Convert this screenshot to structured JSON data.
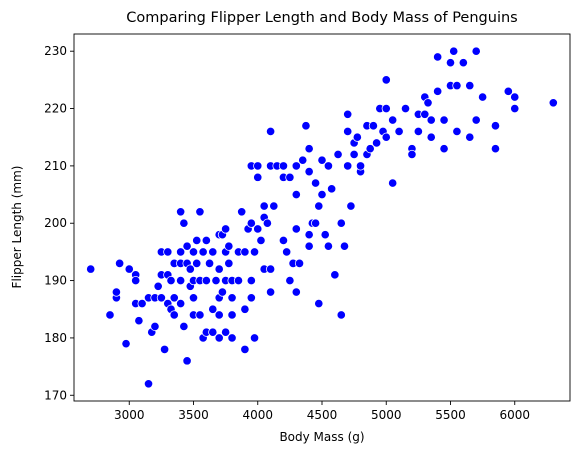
{
  "chart_data": {
    "type": "scatter",
    "title": "Comparing Flipper Length and Body Mass of Penguins",
    "xlabel": "Body Mass (g)",
    "ylabel": "Flipper Length (mm)",
    "xlim": [
      2570,
      6430
    ],
    "ylim": [
      169,
      233
    ],
    "xticks": [
      3000,
      3500,
      4000,
      4500,
      5000,
      5500,
      6000
    ],
    "yticks": [
      170,
      180,
      190,
      200,
      210,
      220,
      230
    ],
    "xtick_labels": [
      "3000",
      "3500",
      "4000",
      "4500",
      "5000",
      "5500",
      "6000"
    ],
    "ytick_labels": [
      "170",
      "180",
      "190",
      "200",
      "210",
      "220",
      "230"
    ],
    "grid": false,
    "legend": "none",
    "marker_color": "#0000ff",
    "marker_edge_color": "#ffffff",
    "series": [
      {
        "points": [
          [
            2700,
            192
          ],
          [
            2850,
            184
          ],
          [
            2900,
            187
          ],
          [
            2900,
            188
          ],
          [
            2925,
            193
          ],
          [
            2975,
            179
          ],
          [
            3000,
            192
          ],
          [
            3050,
            191
          ],
          [
            3050,
            190
          ],
          [
            3050,
            186
          ],
          [
            3075,
            183
          ],
          [
            3100,
            186
          ],
          [
            3150,
            187
          ],
          [
            3150,
            172
          ],
          [
            3175,
            181
          ],
          [
            3200,
            187
          ],
          [
            3200,
            182
          ],
          [
            3225,
            189
          ],
          [
            3250,
            195
          ],
          [
            3250,
            191
          ],
          [
            3250,
            187
          ],
          [
            3275,
            178
          ],
          [
            3300,
            191
          ],
          [
            3300,
            186
          ],
          [
            3300,
            195
          ],
          [
            3325,
            190
          ],
          [
            3325,
            185
          ],
          [
            3350,
            187
          ],
          [
            3350,
            193
          ],
          [
            3350,
            184
          ],
          [
            3400,
            195
          ],
          [
            3400,
            202
          ],
          [
            3400,
            193
          ],
          [
            3400,
            190
          ],
          [
            3400,
            186
          ],
          [
            3425,
            200
          ],
          [
            3425,
            182
          ],
          [
            3450,
            196
          ],
          [
            3450,
            193
          ],
          [
            3450,
            176
          ],
          [
            3475,
            192
          ],
          [
            3475,
            189
          ],
          [
            3500,
            195
          ],
          [
            3500,
            190
          ],
          [
            3500,
            187
          ],
          [
            3500,
            184
          ],
          [
            3525,
            197
          ],
          [
            3525,
            193
          ],
          [
            3550,
            190
          ],
          [
            3550,
            184
          ],
          [
            3550,
            202
          ],
          [
            3575,
            195
          ],
          [
            3575,
            180
          ],
          [
            3600,
            190
          ],
          [
            3600,
            197
          ],
          [
            3600,
            181
          ],
          [
            3625,
            193
          ],
          [
            3650,
            195
          ],
          [
            3650,
            185
          ],
          [
            3650,
            181
          ],
          [
            3675,
            190
          ],
          [
            3700,
            198
          ],
          [
            3700,
            192
          ],
          [
            3700,
            187
          ],
          [
            3700,
            184
          ],
          [
            3700,
            180
          ],
          [
            3725,
            198
          ],
          [
            3725,
            188
          ],
          [
            3750,
            199
          ],
          [
            3750,
            195
          ],
          [
            3750,
            190
          ],
          [
            3750,
            181
          ],
          [
            3775,
            196
          ],
          [
            3775,
            193
          ],
          [
            3800,
            190
          ],
          [
            3800,
            187
          ],
          [
            3800,
            184
          ],
          [
            3800,
            180
          ],
          [
            3850,
            195
          ],
          [
            3850,
            190
          ],
          [
            3875,
            202
          ],
          [
            3900,
            195
          ],
          [
            3900,
            185
          ],
          [
            3900,
            178
          ],
          [
            3925,
            199
          ],
          [
            3950,
            210
          ],
          [
            3950,
            200
          ],
          [
            3950,
            190
          ],
          [
            3950,
            187
          ],
          [
            3975,
            195
          ],
          [
            3975,
            180
          ],
          [
            4000,
            210
          ],
          [
            4000,
            208
          ],
          [
            4000,
            199
          ],
          [
            4025,
            197
          ],
          [
            4050,
            203
          ],
          [
            4050,
            201
          ],
          [
            4050,
            192
          ],
          [
            4075,
            200
          ],
          [
            4100,
            216
          ],
          [
            4100,
            210
          ],
          [
            4100,
            192
          ],
          [
            4100,
            188
          ],
          [
            4125,
            203
          ],
          [
            4150,
            210
          ],
          [
            4200,
            210
          ],
          [
            4200,
            208
          ],
          [
            4200,
            197
          ],
          [
            4225,
            195
          ],
          [
            4250,
            208
          ],
          [
            4250,
            190
          ],
          [
            4275,
            193
          ],
          [
            4300,
            210
          ],
          [
            4300,
            205
          ],
          [
            4300,
            199
          ],
          [
            4300,
            188
          ],
          [
            4325,
            193
          ],
          [
            4350,
            211
          ],
          [
            4375,
            217
          ],
          [
            4400,
            213
          ],
          [
            4400,
            209
          ],
          [
            4400,
            198
          ],
          [
            4400,
            196
          ],
          [
            4425,
            200
          ],
          [
            4450,
            207
          ],
          [
            4450,
            200
          ],
          [
            4475,
            203
          ],
          [
            4475,
            186
          ],
          [
            4500,
            211
          ],
          [
            4500,
            205
          ],
          [
            4525,
            198
          ],
          [
            4550,
            210
          ],
          [
            4550,
            196
          ],
          [
            4575,
            206
          ],
          [
            4600,
            191
          ],
          [
            4625,
            212
          ],
          [
            4650,
            184
          ],
          [
            4650,
            200
          ],
          [
            4675,
            196
          ],
          [
            4700,
            219
          ],
          [
            4700,
            216
          ],
          [
            4700,
            210
          ],
          [
            4725,
            203
          ],
          [
            4750,
            214
          ],
          [
            4750,
            212
          ],
          [
            4775,
            215
          ],
          [
            4800,
            209
          ],
          [
            4800,
            210
          ],
          [
            4850,
            217
          ],
          [
            4850,
            212
          ],
          [
            4875,
            213
          ],
          [
            4900,
            217
          ],
          [
            4925,
            214
          ],
          [
            4950,
            220
          ],
          [
            4975,
            216
          ],
          [
            5000,
            225
          ],
          [
            5000,
            215
          ],
          [
            5000,
            220
          ],
          [
            5050,
            207
          ],
          [
            5050,
            218
          ],
          [
            5100,
            216
          ],
          [
            5150,
            220
          ],
          [
            5200,
            213
          ],
          [
            5200,
            212
          ],
          [
            5250,
            219
          ],
          [
            5250,
            216
          ],
          [
            5300,
            219
          ],
          [
            5300,
            222
          ],
          [
            5325,
            221
          ],
          [
            5350,
            218
          ],
          [
            5350,
            215
          ],
          [
            5400,
            229
          ],
          [
            5400,
            223
          ],
          [
            5450,
            218
          ],
          [
            5450,
            213
          ],
          [
            5500,
            224
          ],
          [
            5500,
            228
          ],
          [
            5525,
            230
          ],
          [
            5550,
            224
          ],
          [
            5550,
            216
          ],
          [
            5600,
            228
          ],
          [
            5650,
            215
          ],
          [
            5650,
            224
          ],
          [
            5700,
            230
          ],
          [
            5700,
            218
          ],
          [
            5750,
            222
          ],
          [
            5850,
            217
          ],
          [
            5850,
            213
          ],
          [
            5950,
            223
          ],
          [
            6000,
            222
          ],
          [
            6000,
            220
          ],
          [
            6300,
            221
          ]
        ]
      }
    ]
  }
}
